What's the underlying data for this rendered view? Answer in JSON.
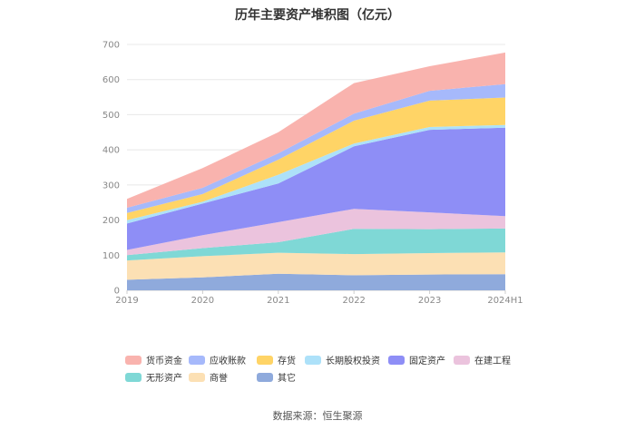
{
  "chart_data": {
    "type": "area",
    "stacked": true,
    "title": "历年主要资产堆积图（亿元）",
    "categories": [
      "2019",
      "2020",
      "2021",
      "2022",
      "2023",
      "2024H1"
    ],
    "ylim": [
      0,
      700
    ],
    "yticks": [
      0,
      100,
      200,
      300,
      400,
      500,
      600,
      700
    ],
    "grid": true,
    "legend_position": "bottom",
    "series": [
      {
        "name": "其它",
        "color": "#8FAADC",
        "values": [
          30,
          37,
          47,
          43,
          45,
          46
        ]
      },
      {
        "name": "商誉",
        "color": "#FCE0B4",
        "values": [
          55,
          60,
          60,
          60,
          61,
          62
        ]
      },
      {
        "name": "无形资产",
        "color": "#7FD8D6",
        "values": [
          15,
          23,
          30,
          72,
          68,
          68
        ]
      },
      {
        "name": "在建工程",
        "color": "#EBC3DD",
        "values": [
          15,
          37,
          57,
          57,
          48,
          35
        ]
      },
      {
        "name": "固定资产",
        "color": "#8E8EF6",
        "values": [
          75,
          90,
          110,
          178,
          235,
          252
        ]
      },
      {
        "name": "长期股权投资",
        "color": "#ADE1F9",
        "values": [
          10,
          5,
          25,
          8,
          8,
          8
        ]
      },
      {
        "name": "存货",
        "color": "#FFD466",
        "values": [
          20,
          22,
          43,
          65,
          75,
          78
        ]
      },
      {
        "name": "应收账款",
        "color": "#A6B9FB",
        "values": [
          15,
          18,
          18,
          20,
          28,
          38
        ]
      },
      {
        "name": "货币资金",
        "color": "#F9B3AE",
        "values": [
          25,
          56,
          60,
          87,
          70,
          90
        ]
      }
    ],
    "legend_order": [
      "货币资金",
      "应收账款",
      "存货",
      "长期股权投资",
      "固定资产",
      "在建工程",
      "无形资产",
      "商誉",
      "其它"
    ]
  },
  "source": "数据来源：恒生聚源"
}
